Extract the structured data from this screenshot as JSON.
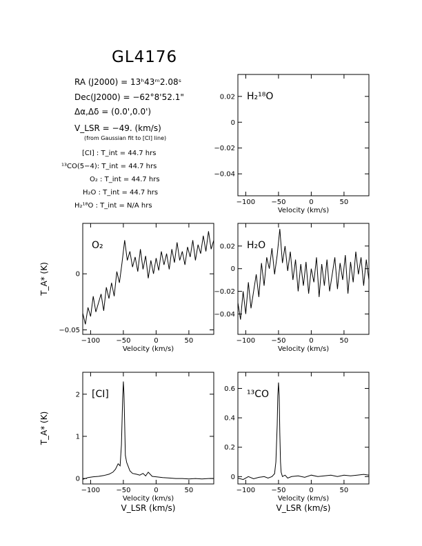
{
  "title": "GL4176",
  "info": {
    "ra": "RA (J2000) =  13ʰ43ᵐ2.08ˢ",
    "dec": "Dec(J2000) =  −62°8'52.1\"",
    "offset": "Δα,Δδ = (0.0',0.0')",
    "vlsr": "V_LSR = −49. (km/s)",
    "note": "(from Gaussian fit to [CI] line)",
    "tint": [
      "[CI] : T_int = 44.7 hrs",
      "¹³CO(5−4): T_int = 44.7 hrs",
      "O₂ : T_int = 44.7 hrs",
      "H₂O : T_int = 44.7 hrs",
      "H₂¹⁸O : T_int = N/A hrs"
    ]
  },
  "chart_data": [
    {
      "id": "h218o",
      "type": "line",
      "label": "H₂¹⁸O",
      "xlabel": "Velocity (km/s)",
      "ylabel": "",
      "xlim": [
        -112,
        88
      ],
      "ylim": [
        -0.057,
        0.037
      ],
      "xticks": [
        -100,
        -50,
        0,
        50
      ],
      "yticks": [
        0.02,
        0,
        -0.02,
        -0.04
      ],
      "yticklabels": [
        "0.02",
        "0",
        "−0.02",
        "−0.04"
      ],
      "series": []
    },
    {
      "id": "o2",
      "type": "line",
      "label": "O₂",
      "xlabel": "Velocity (km/s)",
      "ylabel": "T_A* (K)",
      "xlim": [
        -112,
        88
      ],
      "ylim": [
        -0.054,
        0.045
      ],
      "xticks": [
        -100,
        -50,
        0,
        50
      ],
      "yticks": [
        0,
        -0.05
      ],
      "yticklabels": [
        "0",
        "−0.05"
      ],
      "series": [
        {
          "x": [
            -112,
            -108,
            -104,
            -100,
            -96,
            -92,
            -88,
            -84,
            -80,
            -76,
            -72,
            -68,
            -64,
            -60,
            -56,
            -52,
            -48,
            -44,
            -40,
            -36,
            -32,
            -28,
            -24,
            -20,
            -16,
            -12,
            -8,
            -4,
            0,
            4,
            8,
            12,
            16,
            20,
            24,
            28,
            32,
            36,
            40,
            44,
            48,
            52,
            56,
            60,
            64,
            68,
            72,
            76,
            80,
            84,
            88
          ],
          "y": [
            -0.035,
            -0.045,
            -0.03,
            -0.038,
            -0.02,
            -0.034,
            -0.026,
            -0.018,
            -0.033,
            -0.012,
            -0.022,
            -0.008,
            -0.02,
            0.002,
            -0.008,
            0.01,
            0.03,
            0.012,
            0.02,
            0.006,
            0.015,
            0.002,
            0.022,
            0.004,
            0.016,
            -0.004,
            0.012,
            0.0,
            0.014,
            0.003,
            0.02,
            0.008,
            0.018,
            0.004,
            0.022,
            0.01,
            0.028,
            0.012,
            0.02,
            0.008,
            0.024,
            0.015,
            0.03,
            0.012,
            0.026,
            0.018,
            0.034,
            0.02,
            0.038,
            0.022,
            0.03
          ]
        }
      ]
    },
    {
      "id": "h2o",
      "type": "line",
      "label": "H₂O",
      "xlabel": "Velocity (km/s)",
      "ylabel": "",
      "xlim": [
        -112,
        88
      ],
      "ylim": [
        -0.058,
        0.04
      ],
      "xticks": [
        -100,
        -50,
        0,
        50
      ],
      "yticks": [
        0.02,
        0,
        -0.02,
        -0.04
      ],
      "yticklabels": [
        "0.02",
        "0",
        "−0.02",
        "−0.04"
      ],
      "series": [
        {
          "x": [
            -112,
            -108,
            -104,
            -100,
            -96,
            -92,
            -88,
            -84,
            -80,
            -76,
            -72,
            -68,
            -64,
            -60,
            -56,
            -52,
            -48,
            -44,
            -40,
            -36,
            -32,
            -28,
            -24,
            -20,
            -16,
            -12,
            -8,
            -4,
            0,
            4,
            8,
            12,
            16,
            20,
            24,
            28,
            32,
            36,
            40,
            44,
            48,
            52,
            56,
            60,
            64,
            68,
            72,
            76,
            80,
            84,
            88
          ],
          "y": [
            -0.03,
            -0.045,
            -0.02,
            -0.04,
            -0.012,
            -0.035,
            -0.02,
            -0.005,
            -0.025,
            0.005,
            -0.015,
            0.01,
            0.0,
            0.018,
            -0.005,
            0.012,
            0.035,
            0.005,
            0.02,
            -0.002,
            0.015,
            -0.01,
            0.008,
            -0.02,
            0.004,
            -0.015,
            0.006,
            -0.022,
            0.0,
            -0.012,
            0.01,
            -0.025,
            0.004,
            -0.015,
            0.008,
            -0.02,
            -0.005,
            0.01,
            -0.018,
            0.005,
            -0.01,
            0.012,
            -0.022,
            0.006,
            -0.012,
            0.015,
            -0.005,
            0.01,
            -0.015,
            0.008,
            -0.01
          ]
        }
      ]
    },
    {
      "id": "ci",
      "type": "line",
      "label": "[CI]",
      "xlabel": "Velocity (km/s)",
      "xlabel2": "V_LSR (km/s)",
      "ylabel": "T_A* (K)",
      "xlim": [
        -112,
        88
      ],
      "ylim": [
        -0.13,
        2.52
      ],
      "xticks": [
        -100,
        -50,
        0,
        50
      ],
      "yticks": [
        2,
        1,
        0
      ],
      "yticklabels": [
        "2",
        "1",
        "0"
      ],
      "series": [
        {
          "x": [
            -112,
            -104,
            -96,
            -88,
            -80,
            -72,
            -66,
            -62,
            -58,
            -55,
            -53,
            -51,
            -50,
            -49,
            -48,
            -47,
            -45,
            -43,
            -40,
            -36,
            -30,
            -25,
            -20,
            -16,
            -12,
            -6,
            0,
            10,
            20,
            30,
            40,
            50,
            60,
            70,
            80,
            88
          ],
          "y": [
            -0.02,
            0.02,
            0.04,
            0.05,
            0.07,
            0.1,
            0.15,
            0.22,
            0.35,
            0.3,
            0.8,
            1.9,
            2.3,
            2.0,
            1.3,
            0.55,
            0.38,
            0.3,
            0.18,
            0.12,
            0.1,
            0.08,
            0.12,
            0.06,
            0.15,
            0.05,
            0.04,
            0.02,
            0.01,
            0.0,
            0.0,
            -0.01,
            0.0,
            -0.01,
            0.0,
            0.0
          ]
        }
      ]
    },
    {
      "id": "13co",
      "type": "line",
      "label": "¹³CO",
      "xlabel": "Velocity (km/s)",
      "xlabel2": "V_LSR (km/s)",
      "ylabel": "",
      "xlim": [
        -112,
        88
      ],
      "ylim": [
        -0.05,
        0.71
      ],
      "xticks": [
        -100,
        -50,
        0,
        50
      ],
      "yticks": [
        0.6,
        0.4,
        0.2,
        0
      ],
      "yticklabels": [
        "0.6",
        "0.4",
        "0.2",
        "0"
      ],
      "series": [
        {
          "x": [
            -112,
            -104,
            -96,
            -88,
            -80,
            -72,
            -66,
            -60,
            -56,
            -54,
            -52,
            -51,
            -50,
            -49,
            -48,
            -47,
            -46,
            -44,
            -40,
            -36,
            -30,
            -20,
            -10,
            0,
            10,
            20,
            30,
            40,
            50,
            60,
            70,
            80,
            88
          ],
          "y": [
            -0.01,
            -0.02,
            0.0,
            -0.015,
            -0.005,
            0.0,
            -0.01,
            0.0,
            0.02,
            0.1,
            0.35,
            0.55,
            0.64,
            0.55,
            0.3,
            0.1,
            0.03,
            0.0,
            0.01,
            -0.01,
            0.0,
            0.005,
            -0.005,
            0.01,
            0.0,
            0.005,
            0.01,
            0.0,
            0.01,
            0.005,
            0.01,
            0.015,
            0.01
          ]
        }
      ]
    }
  ]
}
